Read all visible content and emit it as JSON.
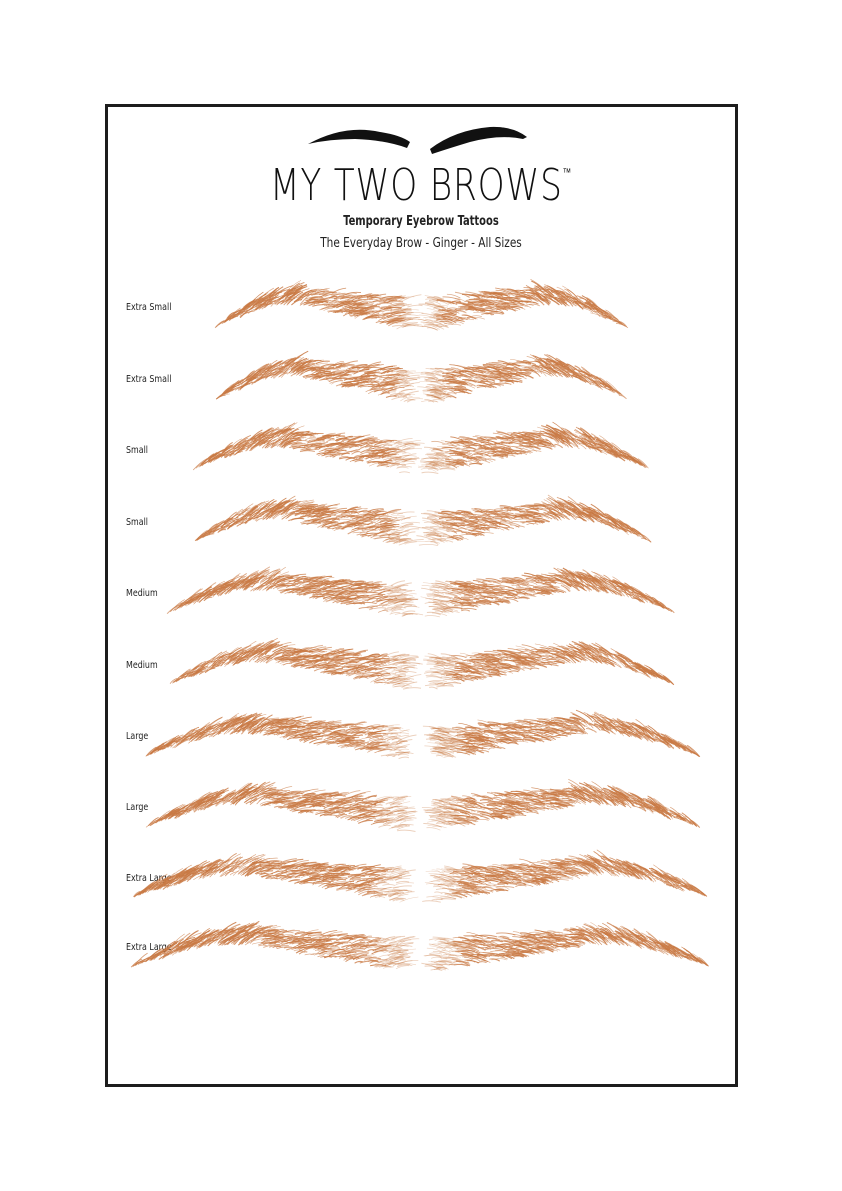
{
  "brand": {
    "name": "MY TWO BROWS",
    "trademark": "™"
  },
  "subtitle": "Temporary Eyebrow Tattoos",
  "product_line": "The Everyday Brow - Ginger - All Sizes",
  "colors": {
    "brow": "#c97a45",
    "logo": "#111111",
    "border": "#1d1d1d"
  },
  "rows": [
    {
      "label": "Extra Small",
      "size": "xs"
    },
    {
      "label": "Extra Small",
      "size": "xs"
    },
    {
      "label": "Small",
      "size": "s"
    },
    {
      "label": "Small",
      "size": "s"
    },
    {
      "label": "Medium",
      "size": "m"
    },
    {
      "label": "Medium",
      "size": "m"
    },
    {
      "label": "Large",
      "size": "l"
    },
    {
      "label": "Large",
      "size": "l"
    },
    {
      "label": "Extra Large",
      "size": "xl"
    },
    {
      "label": "Extra Large",
      "size": "xl"
    }
  ]
}
